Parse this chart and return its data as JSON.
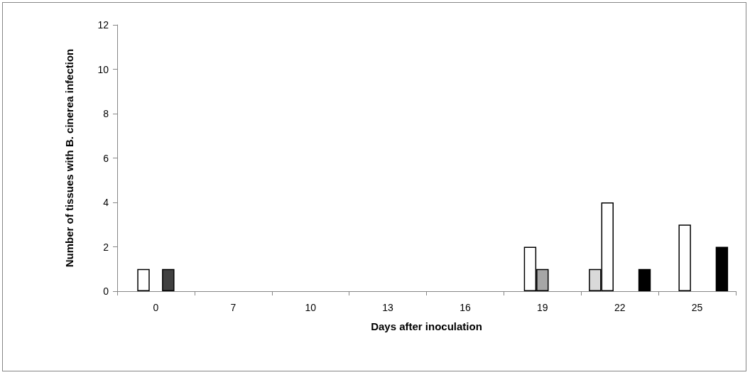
{
  "chart_data": {
    "type": "bar",
    "xlabel": "Days after inoculation",
    "ylabel": "Number of tissues with B. cinerea infection",
    "categories": [
      "0",
      "7",
      "10",
      "13",
      "16",
      "19",
      "22",
      "25"
    ],
    "series": [
      {
        "color": "#d9d9d9",
        "values": [
          0,
          0,
          0,
          0,
          0,
          0,
          1,
          0
        ]
      },
      {
        "color": "#ffffff",
        "values": [
          1,
          0,
          0,
          0,
          0,
          2,
          4,
          3
        ]
      },
      {
        "color": "#a6a6a6",
        "values": [
          0,
          0,
          0,
          0,
          0,
          1,
          0,
          0
        ]
      },
      {
        "color": "#404040",
        "values": [
          1,
          0,
          0,
          0,
          0,
          0,
          0,
          0
        ]
      },
      {
        "color": "#000000",
        "values": [
          0,
          0,
          0,
          0,
          0,
          0,
          1,
          2
        ]
      }
    ],
    "ylim": [
      0,
      12
    ],
    "yticks": [
      0,
      2,
      4,
      6,
      8,
      10,
      12
    ],
    "grid": false
  }
}
